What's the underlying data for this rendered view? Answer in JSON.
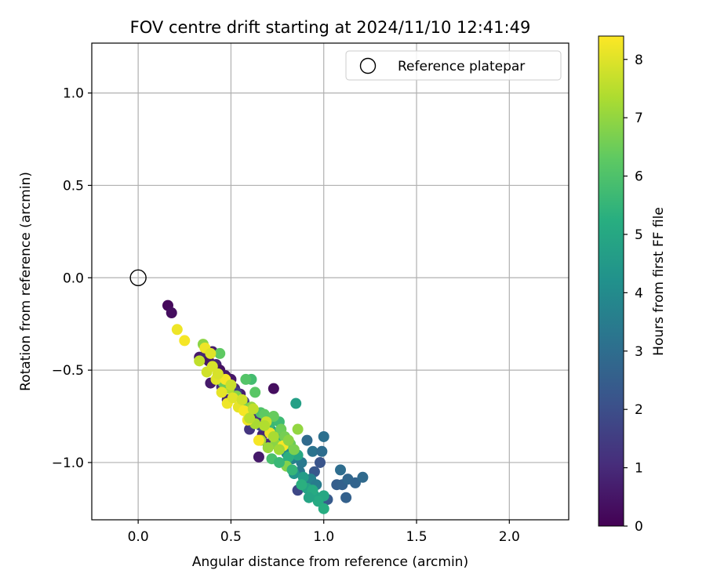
{
  "chart_data": {
    "type": "scatter",
    "title": "FOV centre drift starting at 2024/11/10 12:41:49",
    "xlabel": "Angular distance from reference (arcmin)",
    "ylabel": "Rotation from reference (arcmin)",
    "xlim": [
      -0.25,
      2.32
    ],
    "ylim": [
      -1.31,
      1.27
    ],
    "xticks": [
      0.0,
      0.5,
      1.0,
      1.5,
      2.0
    ],
    "xtick_labels": [
      "0.0",
      "0.5",
      "1.0",
      "1.5",
      "2.0"
    ],
    "yticks": [
      -1.0,
      -0.5,
      0.0,
      0.5,
      1.0
    ],
    "ytick_labels": [
      "−1.0",
      "−0.5",
      "0.0",
      "0.5",
      "1.0"
    ],
    "grid": true,
    "legend": {
      "position": "top-right",
      "entries": [
        "Reference platepar"
      ]
    },
    "reference_point": {
      "x": 0.0,
      "y": 0.0,
      "label": "Reference platepar"
    },
    "colorbar": {
      "label": "Hours from first FF file",
      "colormap": "viridis",
      "range": [
        0,
        8.4
      ],
      "ticks": [
        0,
        1,
        2,
        3,
        4,
        5,
        6,
        7,
        8
      ],
      "tick_labels": [
        "0",
        "1",
        "2",
        "3",
        "4",
        "5",
        "6",
        "7",
        "8"
      ]
    },
    "points": [
      [
        0.16,
        -0.15,
        0.2
      ],
      [
        0.18,
        -0.19,
        0.3
      ],
      [
        0.33,
        -0.43,
        0.6
      ],
      [
        0.36,
        -0.42,
        0.9
      ],
      [
        0.38,
        -0.45,
        0.5
      ],
      [
        0.4,
        -0.4,
        0.7
      ],
      [
        0.42,
        -0.47,
        0.8
      ],
      [
        0.44,
        -0.5,
        0.4
      ],
      [
        0.47,
        -0.53,
        0.6
      ],
      [
        0.5,
        -0.55,
        0.5
      ],
      [
        0.52,
        -0.6,
        0.9
      ],
      [
        0.55,
        -0.63,
        0.7
      ],
      [
        0.45,
        -0.59,
        1.0
      ],
      [
        0.48,
        -0.66,
        0.8
      ],
      [
        0.58,
        -0.7,
        1.1
      ],
      [
        0.62,
        -0.72,
        0.8
      ],
      [
        0.65,
        -0.75,
        1.2
      ],
      [
        0.6,
        -0.82,
        1.3
      ],
      [
        0.67,
        -0.85,
        0.9
      ],
      [
        0.7,
        -0.9,
        1.0
      ],
      [
        0.73,
        -0.6,
        0.3
      ],
      [
        0.65,
        -0.97,
        0.6
      ],
      [
        0.53,
        -0.62,
        1.5
      ],
      [
        0.39,
        -0.57,
        0.6
      ],
      [
        0.43,
        -0.53,
        1.1
      ],
      [
        0.57,
        -0.67,
        1.6
      ],
      [
        0.62,
        -0.79,
        1.7
      ],
      [
        0.66,
        -0.8,
        1.9
      ],
      [
        0.75,
        -0.88,
        2.0
      ],
      [
        0.86,
        -1.15,
        1.8
      ],
      [
        0.92,
        -1.1,
        2.1
      ],
      [
        0.95,
        -1.05,
        2.3
      ],
      [
        0.98,
        -1.0,
        2.2
      ],
      [
        1.02,
        -1.2,
        2.4
      ],
      [
        1.07,
        -1.12,
        2.5
      ],
      [
        1.1,
        -1.12,
        2.6
      ],
      [
        1.13,
        -1.09,
        2.8
      ],
      [
        1.17,
        -1.11,
        2.7
      ],
      [
        1.21,
        -1.08,
        2.9
      ],
      [
        1.12,
        -1.19,
        2.6
      ],
      [
        1.09,
        -1.04,
        3.0
      ],
      [
        1.0,
        -0.86,
        3.1
      ],
      [
        0.91,
        -0.88,
        2.9
      ],
      [
        0.94,
        -0.94,
        3.2
      ],
      [
        0.99,
        -0.94,
        3.0
      ],
      [
        0.88,
        -1.0,
        3.4
      ],
      [
        0.83,
        -0.98,
        3.6
      ],
      [
        0.8,
        -0.95,
        3.8
      ],
      [
        0.87,
        -1.05,
        3.3
      ],
      [
        0.93,
        -1.09,
        3.7
      ],
      [
        0.96,
        -1.12,
        3.5
      ],
      [
        0.78,
        -0.92,
        4.0
      ],
      [
        0.74,
        -0.87,
        4.2
      ],
      [
        0.72,
        -0.83,
        4.4
      ],
      [
        0.69,
        -0.8,
        4.5
      ],
      [
        0.8,
        -1.0,
        4.1
      ],
      [
        0.84,
        -1.06,
        4.3
      ],
      [
        0.89,
        -1.08,
        4.6
      ],
      [
        0.91,
        -1.14,
        4.8
      ],
      [
        0.95,
        -1.18,
        4.9
      ],
      [
        1.0,
        -1.18,
        5.0
      ],
      [
        0.97,
        -1.21,
        5.1
      ],
      [
        1.0,
        -1.25,
        5.2
      ],
      [
        0.85,
        -0.68,
        4.7
      ],
      [
        0.86,
        -0.96,
        5.0
      ],
      [
        0.81,
        -0.97,
        5.3
      ],
      [
        0.77,
        -0.89,
        5.4
      ],
      [
        0.75,
        -0.84,
        5.5
      ],
      [
        0.71,
        -0.79,
        5.6
      ],
      [
        0.76,
        -0.78,
        5.7
      ],
      [
        0.61,
        -0.55,
        5.8
      ],
      [
        0.58,
        -0.55,
        6.1
      ],
      [
        0.63,
        -0.62,
        6.2
      ],
      [
        0.66,
        -0.73,
        6.0
      ],
      [
        0.68,
        -0.74,
        6.3
      ],
      [
        0.73,
        -0.75,
        6.4
      ],
      [
        0.77,
        -0.82,
        6.5
      ],
      [
        0.79,
        -0.86,
        6.6
      ],
      [
        0.82,
        -0.9,
        6.4
      ],
      [
        0.84,
        -0.93,
        6.7
      ],
      [
        0.8,
        -1.02,
        6.8
      ],
      [
        0.86,
        -0.82,
        7.0
      ],
      [
        0.74,
        -0.9,
        6.9
      ],
      [
        0.7,
        -0.92,
        7.1
      ],
      [
        0.66,
        -0.88,
        7.2
      ],
      [
        0.63,
        -0.79,
        7.3
      ],
      [
        0.61,
        -0.7,
        7.0
      ],
      [
        0.56,
        -0.68,
        6.6
      ],
      [
        0.53,
        -0.64,
        6.8
      ],
      [
        0.49,
        -0.6,
        7.4
      ],
      [
        0.46,
        -0.57,
        6.5
      ],
      [
        0.44,
        -0.41,
        6.3
      ],
      [
        0.35,
        -0.36,
        6.9
      ],
      [
        0.33,
        -0.45,
        7.6
      ],
      [
        0.37,
        -0.51,
        7.8
      ],
      [
        0.4,
        -0.48,
        7.9
      ],
      [
        0.42,
        -0.55,
        8.0
      ],
      [
        0.45,
        -0.62,
        8.1
      ],
      [
        0.48,
        -0.68,
        8.2
      ],
      [
        0.51,
        -0.65,
        8.0
      ],
      [
        0.54,
        -0.7,
        8.1
      ],
      [
        0.57,
        -0.72,
        8.3
      ],
      [
        0.59,
        -0.77,
        8.2
      ],
      [
        0.65,
        -0.88,
        8.3
      ],
      [
        0.71,
        -0.84,
        8.2
      ],
      [
        0.78,
        -0.91,
        8.3
      ],
      [
        0.69,
        -0.78,
        7.7
      ],
      [
        0.6,
        -0.76,
        7.5
      ],
      [
        0.47,
        -0.55,
        8.3
      ],
      [
        0.21,
        -0.28,
        8.2
      ],
      [
        0.25,
        -0.34,
        8.3
      ],
      [
        0.36,
        -0.38,
        8.2
      ],
      [
        0.39,
        -0.41,
        8.0
      ],
      [
        0.43,
        -0.52,
        7.9
      ],
      [
        0.5,
        -0.58,
        7.7
      ],
      [
        0.56,
        -0.66,
        7.8
      ],
      [
        0.62,
        -0.71,
        7.6
      ],
      [
        0.68,
        -0.8,
        7.4
      ],
      [
        0.73,
        -0.86,
        7.3
      ],
      [
        0.76,
        -0.93,
        7.2
      ],
      [
        0.81,
        -0.88,
        6.9
      ],
      [
        0.72,
        -0.98,
        5.9
      ],
      [
        0.76,
        -1.0,
        5.6
      ],
      [
        0.83,
        -1.04,
        5.5
      ],
      [
        0.88,
        -1.12,
        5.3
      ],
      [
        0.94,
        -1.15,
        5.1
      ],
      [
        0.92,
        -1.19,
        4.9
      ]
    ]
  }
}
